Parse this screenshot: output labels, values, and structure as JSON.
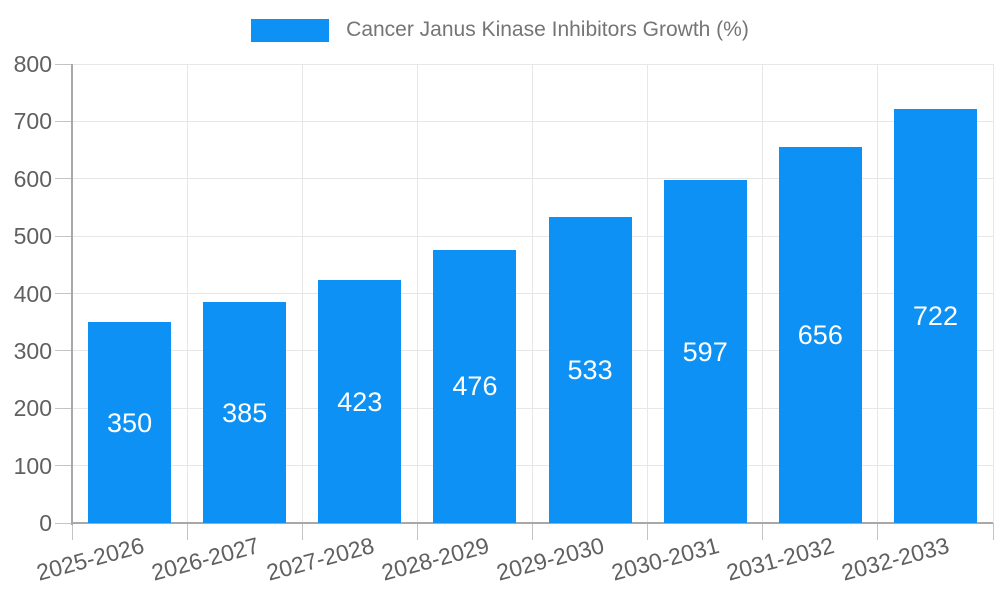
{
  "chart_data": {
    "type": "bar",
    "title": "Cancer Janus Kinase Inhibitors Growth (%)",
    "categories": [
      "2025-2026",
      "2026-2027",
      "2027-2028",
      "2028-2029",
      "2029-2030",
      "2030-2031",
      "2031-2032",
      "2032-2033"
    ],
    "values": [
      350,
      385,
      423,
      476,
      533,
      597,
      656,
      722
    ],
    "xlabel": "",
    "ylabel": "",
    "ylim": [
      0,
      800
    ],
    "yticks": [
      0,
      100,
      200,
      300,
      400,
      500,
      600,
      700,
      800
    ],
    "grid": true,
    "legend_position": "top",
    "bar_color": "#0d91f5",
    "value_label_position": "inside-center",
    "x_tick_rotation_deg": 15
  },
  "style": {
    "background": "#ffffff",
    "bar_color": "#0d91f5",
    "grid_color": "#e7e7e7",
    "axis_line_color": "#a8a8a8",
    "tick_mark_color": "#c4c4c4",
    "tick_label_color": "#606060",
    "legend_text_color": "#757575",
    "value_label_color": "#ffffff"
  }
}
